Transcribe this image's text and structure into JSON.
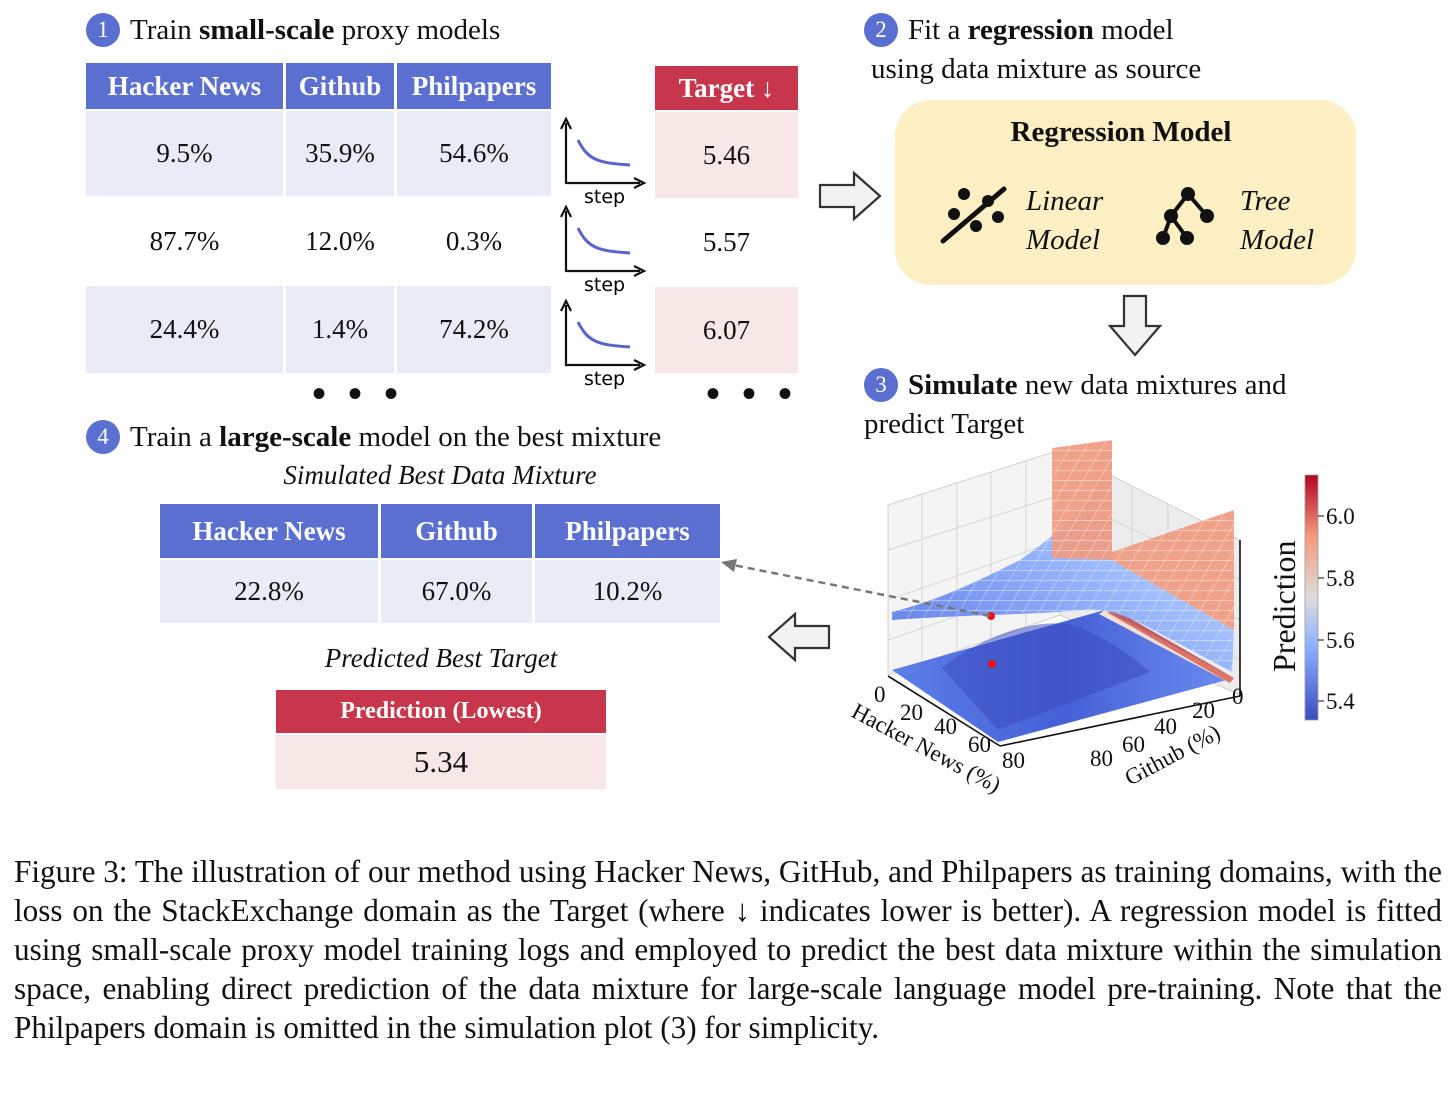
{
  "step1": {
    "num": "1",
    "pre": "Train ",
    "bold": "small-scale",
    "post": " proxy models"
  },
  "step2": {
    "num": "2",
    "pre": "Fit a ",
    "bold": "regression",
    "post": " model",
    "line2": "using data mixture as source"
  },
  "step3": {
    "num": "3",
    "bold": "Simulate",
    "post": " new data mixtures and",
    "line2": "predict Target"
  },
  "step4": {
    "num": "4",
    "pre": "Train a ",
    "bold": "large-scale",
    "post": " model on the best mixture"
  },
  "proxy_table": {
    "headers": [
      "Hacker News",
      "Github",
      "Philpapers"
    ],
    "rows": [
      [
        "9.5%",
        "35.9%",
        "54.6%"
      ],
      [
        "87.7%",
        "12.0%",
        "0.3%"
      ],
      [
        "24.4%",
        "1.4%",
        "74.2%"
      ]
    ],
    "ellipsis": "• • •"
  },
  "target_table": {
    "header": "Target ↓",
    "values": [
      "5.46",
      "5.57",
      "6.07"
    ],
    "ellipsis": "• • •"
  },
  "curve_label": "step",
  "regression_box": {
    "title": "Regression Model",
    "linear_line1": "Linear",
    "linear_line2": "Model",
    "tree_line1": "Tree",
    "tree_line2": "Model",
    "linear_icon": "linear-regression-icon",
    "tree_icon": "tree-icon"
  },
  "best_mixture": {
    "title": "Simulated Best Data Mixture",
    "headers": [
      "Hacker News",
      "Github",
      "Philpapers"
    ],
    "values": [
      "22.8%",
      "67.0%",
      "10.2%"
    ]
  },
  "best_target": {
    "title": "Predicted Best Target",
    "header": "Prediction (Lowest)",
    "value": "5.34"
  },
  "chart_data": {
    "type": "surface3d",
    "title": "",
    "x_label": "Hacker News (%)",
    "y_label": "Github (%)",
    "z_label": "Prediction",
    "x_ticks": [
      "0",
      "20",
      "40",
      "60",
      "80"
    ],
    "y_ticks": [
      "0",
      "20",
      "40",
      "60",
      "80"
    ],
    "colorbar_label": "Prediction",
    "colorbar_ticks": [
      "6.0",
      "5.8",
      "5.6",
      "5.4"
    ],
    "colorbar_range": [
      5.34,
      6.12
    ],
    "min_point": {
      "hacker_news": 22.8,
      "github": 67.0,
      "prediction": 5.34
    }
  },
  "colors": {
    "blue_header": "#5b6fd0",
    "red_header": "#c8364c",
    "lavender_cell": "#e9ebf7",
    "pink_cell": "#f8e7e7",
    "regression_bg": "#fcefc3"
  },
  "caption": "Figure 3: The illustration of our method using Hacker News, GitHub, and Philpapers as training domains, with the loss on the StackExchange domain as the Target (where ↓ indicates lower is better). A regression model is fitted using small-scale proxy model training logs and employed to predict the best data mixture within the simulation space, enabling direct prediction of the data mixture for large-scale language model pre-training. Note that the Philpapers domain is omitted in the simulation plot (3) for simplicity."
}
